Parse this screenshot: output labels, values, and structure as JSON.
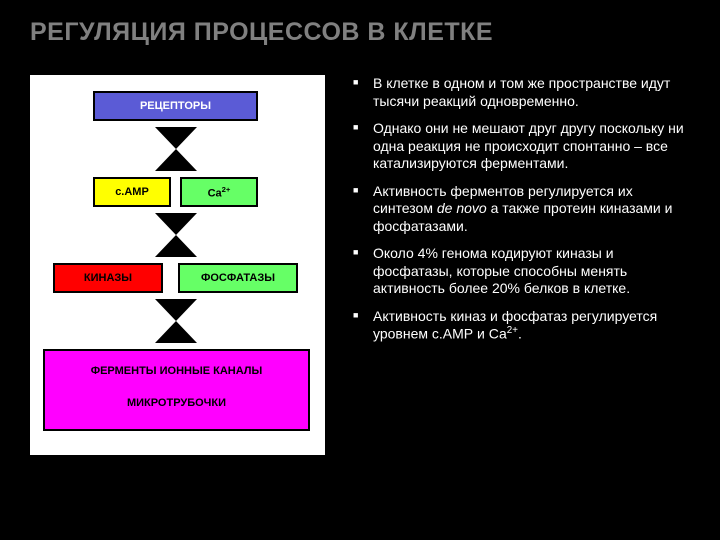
{
  "title": "РЕГУЛЯЦИЯ ПРОЦЕССОВ В КЛЕТКЕ",
  "colors": {
    "slide_bg": "#000000",
    "title_color": "#808080",
    "diagram_bg": "#ffffff",
    "text_color": "#ffffff",
    "box_blue": "#5b5bd6",
    "box_yellow": "#ffff00",
    "box_red": "#ff0000",
    "box_green": "#66ff66",
    "box_magenta": "#ff00ff",
    "hourglass_fill": "#000000"
  },
  "diagram": {
    "receptors": {
      "label": "РЕЦЕПТОРЫ",
      "text_color": "#ffffff"
    },
    "camp": {
      "label": "с.АМР",
      "text_color": "#000000"
    },
    "ca": {
      "label": "Ca",
      "sup": "2+",
      "text_color": "#000000"
    },
    "kinases": {
      "label": "КИНАЗЫ",
      "text_color": "#000000"
    },
    "phosphatases": {
      "label": "ФОСФАТАЗЫ",
      "text_color": "#000000"
    },
    "enzymes_line": "ФЕРМЕНТЫ   ИОННЫЕ КАНАЛЫ",
    "microtubules": "МИКРОТРУБОЧКИ"
  },
  "bullets": [
    "В клетке в одном и том же пространстве идут тысячи реакций одновременно.",
    "Однако они не мешают друг другу поскольку ни одна реакция не происходит спонтанно – все катализируются ферментами.",
    "Активность ферментов регулируется их синтезом |de novo| а также протеин киназами и фосфатазами.",
    "Около 4% генома кодируют киназы и фосфатазы, которые способны менять активность более 20% белков в клетке.",
    "Активность киназ и фосфатаз регулируется уровнем с.АМР и Са^2+^."
  ]
}
